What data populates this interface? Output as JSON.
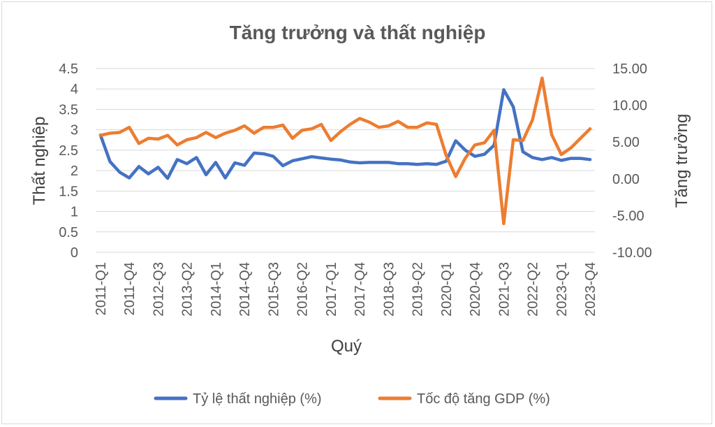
{
  "chart_data": {
    "type": "line",
    "title": "Tăng trưởng và thất nghiệp",
    "xlabel": "Quý",
    "ylabel_left": "Thất nghiệp",
    "ylabel_right": "Tăng trưởng",
    "ylim_left": [
      0,
      4.5
    ],
    "ylim_right": [
      -10,
      15
    ],
    "grid": true,
    "legend_position": "bottom",
    "yticks_left": [
      "0",
      "0.5",
      "1",
      "1.5",
      "2",
      "2.5",
      "3",
      "3.5",
      "4",
      "4.5"
    ],
    "yticks_right": [
      "-10.00",
      "-5.00",
      "0.00",
      "5.00",
      "10.00",
      "15.00"
    ],
    "x_tick_labels": [
      "2011-Q1",
      "2011-Q4",
      "2012-Q3",
      "2013-Q2",
      "2014-Q1",
      "2014-Q4",
      "2015-Q3",
      "2016-Q2",
      "2017-Q1",
      "2017-Q4",
      "2018-Q3",
      "2019-Q2",
      "2020-Q1",
      "2020-Q4",
      "2021-Q3",
      "2022-Q2",
      "2023-Q1",
      "2023-Q4"
    ],
    "categories": [
      "2011-Q1",
      "2011-Q2",
      "2011-Q3",
      "2011-Q4",
      "2012-Q1",
      "2012-Q2",
      "2012-Q3",
      "2012-Q4",
      "2013-Q1",
      "2013-Q2",
      "2013-Q3",
      "2013-Q4",
      "2014-Q1",
      "2014-Q2",
      "2014-Q3",
      "2014-Q4",
      "2015-Q1",
      "2015-Q2",
      "2015-Q3",
      "2015-Q4",
      "2016-Q1",
      "2016-Q2",
      "2016-Q3",
      "2016-Q4",
      "2017-Q1",
      "2017-Q2",
      "2017-Q3",
      "2017-Q4",
      "2018-Q1",
      "2018-Q2",
      "2018-Q3",
      "2018-Q4",
      "2019-Q1",
      "2019-Q2",
      "2019-Q3",
      "2019-Q4",
      "2020-Q1",
      "2020-Q2",
      "2020-Q3",
      "2020-Q4",
      "2021-Q1",
      "2021-Q2",
      "2021-Q3",
      "2021-Q4",
      "2022-Q1",
      "2022-Q2",
      "2022-Q3",
      "2022-Q4",
      "2023-Q1",
      "2023-Q2",
      "2023-Q3",
      "2023-Q4"
    ],
    "series": [
      {
        "name": "Tỷ lệ thất nghiệp (%)",
        "axis": "left",
        "color": "#4472C4",
        "values": [
          2.87,
          2.22,
          1.96,
          1.82,
          2.1,
          1.92,
          2.08,
          1.81,
          2.27,
          2.17,
          2.32,
          1.9,
          2.2,
          1.82,
          2.19,
          2.13,
          2.43,
          2.41,
          2.35,
          2.12,
          2.24,
          2.29,
          2.34,
          2.31,
          2.28,
          2.26,
          2.21,
          2.19,
          2.2,
          2.2,
          2.2,
          2.17,
          2.17,
          2.15,
          2.17,
          2.15,
          2.23,
          2.73,
          2.5,
          2.35,
          2.4,
          2.62,
          3.98,
          3.56,
          2.46,
          2.32,
          2.27,
          2.32,
          2.25,
          2.3,
          2.3,
          2.27
        ]
      },
      {
        "name": "Tốc độ tăng GDP (%)",
        "axis": "right",
        "color": "#ED7D31",
        "values": [
          5.9,
          6.2,
          6.3,
          7.0,
          4.8,
          5.5,
          5.4,
          5.9,
          4.6,
          5.3,
          5.6,
          6.3,
          5.6,
          6.2,
          6.6,
          7.2,
          6.2,
          7.0,
          7.0,
          7.3,
          5.5,
          6.6,
          6.8,
          7.4,
          5.2,
          6.4,
          7.4,
          8.2,
          7.7,
          7.0,
          7.2,
          7.8,
          7.0,
          7.0,
          7.6,
          7.4,
          3.2,
          0.3,
          2.8,
          4.6,
          4.9,
          6.6,
          -6.1,
          5.3,
          5.2,
          8.0,
          13.7,
          6.0,
          3.3,
          4.2,
          5.5,
          6.8
        ]
      }
    ]
  }
}
